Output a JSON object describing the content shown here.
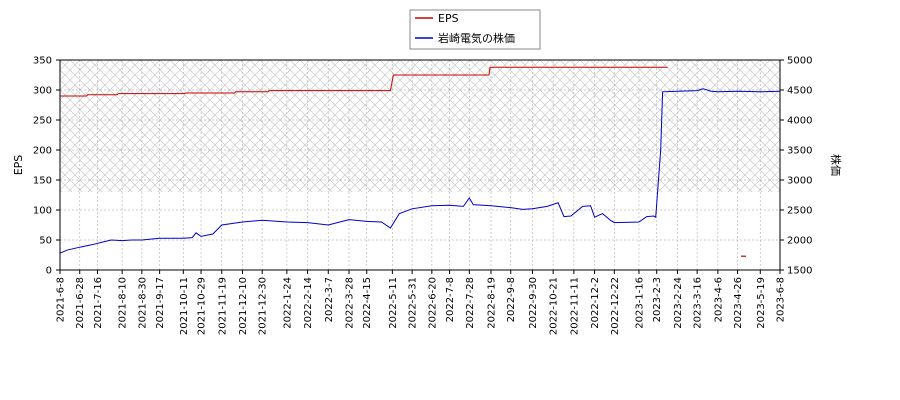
{
  "chart_data": {
    "type": "line",
    "legend": {
      "position": "top-center",
      "entries": [
        {
          "label": "EPS",
          "color": "#cc0000"
        },
        {
          "label": "岩崎電気の株価",
          "color": "#0000cc"
        }
      ]
    },
    "y_left": {
      "label": "EPS",
      "range": [
        0,
        350
      ],
      "ticks": [
        "0",
        "50",
        "100",
        "150",
        "200",
        "250",
        "300",
        "350"
      ]
    },
    "y_right": {
      "label": "株価",
      "range": [
        1500,
        5000
      ],
      "ticks": [
        "1500",
        "2000",
        "2500",
        "3000",
        "3500",
        "4000",
        "4500",
        "5000"
      ]
    },
    "x_axis": {
      "start": "2021-6-8",
      "end": "2023-6-8",
      "tick_labels": [
        "2021-6-8",
        "2021-6-28",
        "2021-7-16",
        "2021-8-10",
        "2021-8-30",
        "2021-9-17",
        "2021-10-11",
        "2021-10-29",
        "2021-11-19",
        "2021-12-10",
        "2021-12-30",
        "2022-1-24",
        "2022-2-14",
        "2022-3-7",
        "2022-3-28",
        "2022-4-15",
        "2022-5-11",
        "2022-5-31",
        "2022-6-20",
        "2022-7-8",
        "2022-7-28",
        "2022-8-19",
        "2022-9-8",
        "2022-9-30",
        "2022-10-21",
        "2022-11-11",
        "2022-12-2",
        "2022-12-22",
        "2023-1-16",
        "2023-2-3",
        "2023-2-24",
        "2023-3-16",
        "2023-4-6",
        "2023-4-26",
        "2023-5-19",
        "2023-6-8"
      ]
    },
    "series": [
      {
        "name": "EPS",
        "color": "#cc0000",
        "axis": "left",
        "points": [
          [
            "2021-6-8",
            290
          ],
          [
            "2021-7-5",
            290
          ],
          [
            "2021-7-6",
            292
          ],
          [
            "2021-8-5",
            292
          ],
          [
            "2021-8-6",
            294
          ],
          [
            "2021-10-12",
            294
          ],
          [
            "2021-10-13",
            295
          ],
          [
            "2021-12-2",
            295
          ],
          [
            "2021-12-3",
            297
          ],
          [
            "2022-1-5",
            297
          ],
          [
            "2022-1-6",
            299
          ],
          [
            "2022-5-9",
            299
          ],
          [
            "2022-5-12",
            325
          ],
          [
            "2022-8-17",
            325
          ],
          [
            "2022-8-18",
            338
          ],
          [
            "2023-2-14",
            338
          ]
        ],
        "isolated_points": [
          [
            "2023-5-2",
            23
          ]
        ]
      },
      {
        "name": "岩崎電気の株価",
        "color": "#0000cc",
        "axis": "right",
        "points": [
          [
            "2021-6-8",
            1780
          ],
          [
            "2021-6-15",
            1830
          ],
          [
            "2021-6-28",
            1880
          ],
          [
            "2021-7-10",
            1920
          ],
          [
            "2021-7-20",
            1960
          ],
          [
            "2021-7-30",
            2000
          ],
          [
            "2021-8-10",
            1990
          ],
          [
            "2021-8-20",
            2000
          ],
          [
            "2021-8-30",
            2000
          ],
          [
            "2021-9-17",
            2030
          ],
          [
            "2021-10-11",
            2030
          ],
          [
            "2021-10-20",
            2040
          ],
          [
            "2021-10-24",
            2120
          ],
          [
            "2021-10-29",
            2060
          ],
          [
            "2021-11-10",
            2100
          ],
          [
            "2021-11-19",
            2250
          ],
          [
            "2021-12-10",
            2300
          ],
          [
            "2021-12-30",
            2330
          ],
          [
            "2022-1-24",
            2300
          ],
          [
            "2022-2-14",
            2290
          ],
          [
            "2022-3-7",
            2250
          ],
          [
            "2022-3-28",
            2340
          ],
          [
            "2022-4-15",
            2310
          ],
          [
            "2022-4-30",
            2300
          ],
          [
            "2022-5-9",
            2200
          ],
          [
            "2022-5-18",
            2440
          ],
          [
            "2022-5-31",
            2520
          ],
          [
            "2022-6-20",
            2570
          ],
          [
            "2022-7-8",
            2580
          ],
          [
            "2022-7-22",
            2560
          ],
          [
            "2022-7-28",
            2700
          ],
          [
            "2022-8-1",
            2590
          ],
          [
            "2022-8-19",
            2570
          ],
          [
            "2022-9-8",
            2540
          ],
          [
            "2022-9-20",
            2510
          ],
          [
            "2022-9-30",
            2520
          ],
          [
            "2022-10-15",
            2560
          ],
          [
            "2022-10-26",
            2620
          ],
          [
            "2022-11-1",
            2390
          ],
          [
            "2022-11-8",
            2400
          ],
          [
            "2022-11-20",
            2560
          ],
          [
            "2022-11-28",
            2570
          ],
          [
            "2022-12-2",
            2380
          ],
          [
            "2022-12-10",
            2440
          ],
          [
            "2022-12-18",
            2330
          ],
          [
            "2022-12-22",
            2290
          ],
          [
            "2023-1-16",
            2300
          ],
          [
            "2023-1-24",
            2390
          ],
          [
            "2023-1-31",
            2400
          ],
          [
            "2023-2-2",
            2380
          ],
          [
            "2023-2-7",
            3500
          ],
          [
            "2023-2-9",
            4470
          ],
          [
            "2023-2-24",
            4480
          ],
          [
            "2023-3-16",
            4490
          ],
          [
            "2023-3-22",
            4520
          ],
          [
            "2023-3-30",
            4480
          ],
          [
            "2023-4-6",
            4470
          ],
          [
            "2023-4-26",
            4480
          ],
          [
            "2023-5-19",
            4470
          ],
          [
            "2023-6-8",
            4480
          ]
        ]
      }
    ]
  }
}
